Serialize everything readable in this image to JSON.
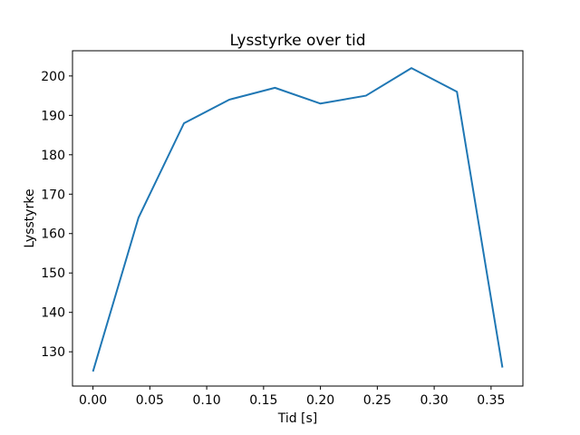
{
  "figure": {
    "background_color": "#ffffff",
    "spine_color": "#000000",
    "text_color": "#000000"
  },
  "chart_data": {
    "type": "line",
    "title": "Lysstyrke over tid",
    "xlabel": "Tid [s]",
    "ylabel": "Lysstyrke",
    "x": [
      0.0,
      0.04,
      0.08,
      0.12,
      0.16,
      0.2,
      0.24,
      0.28,
      0.32,
      0.36
    ],
    "series": [
      {
        "values": [
          125,
          164,
          188,
          194,
          197,
          193,
          195,
          202,
          196,
          126
        ],
        "color": "#1f77b4"
      }
    ],
    "xlim": [
      -0.018,
      0.378
    ],
    "ylim": [
      121.3,
      206.4
    ],
    "xticks": {
      "values": [
        0.0,
        0.05,
        0.1,
        0.15,
        0.2,
        0.25,
        0.3,
        0.35
      ],
      "labels": [
        "0.00",
        "0.05",
        "0.10",
        "0.15",
        "0.20",
        "0.25",
        "0.30",
        "0.35"
      ]
    },
    "yticks": {
      "values": [
        130,
        140,
        150,
        160,
        170,
        180,
        190,
        200
      ],
      "labels": [
        "130",
        "140",
        "150",
        "160",
        "170",
        "180",
        "190",
        "200"
      ]
    },
    "grid": false,
    "legend": "none",
    "marker": "none"
  }
}
